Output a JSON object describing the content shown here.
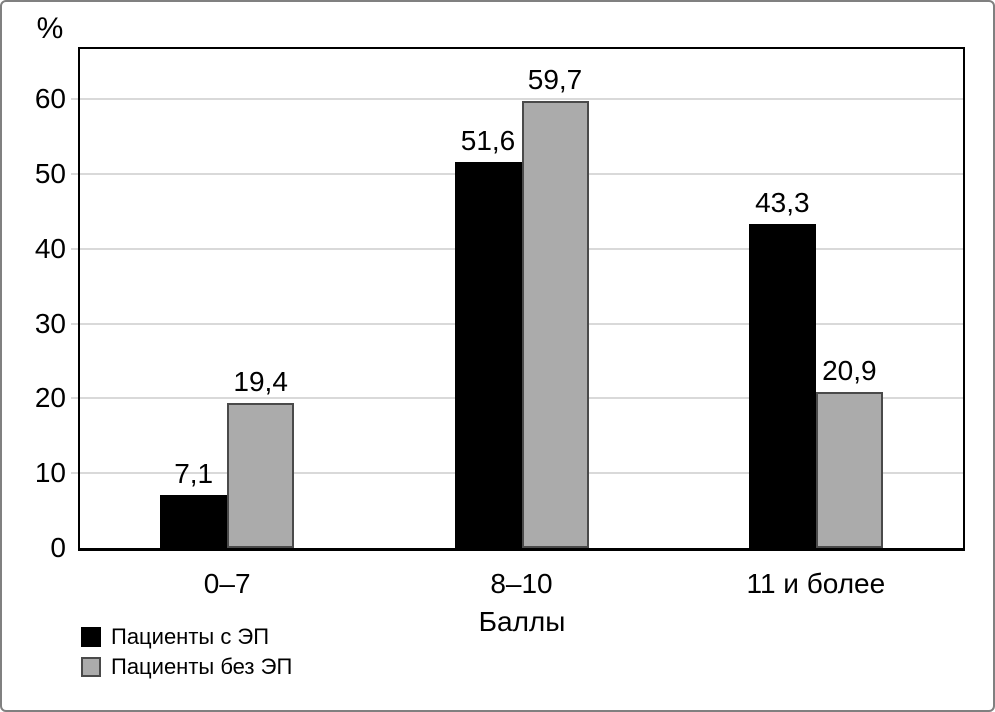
{
  "frame": {
    "background": "#ffffff",
    "border_color": "#808080"
  },
  "chart_data": {
    "type": "bar",
    "title": "",
    "categories": [
      "0–7",
      "8–10",
      "11 и более"
    ],
    "series": [
      {
        "name": "Пациенты с ЭП",
        "values": [
          7.1,
          51.6,
          43.3
        ],
        "labels": [
          "7,1",
          "51,6",
          "43,3"
        ],
        "color": "#000000",
        "border_color": "#000000"
      },
      {
        "name": "Пациенты без ЭП",
        "values": [
          19.4,
          59.7,
          20.9
        ],
        "labels": [
          "19,4",
          "59,7",
          "20,9"
        ],
        "color": "#ababab",
        "border_color": "#4a4a4a"
      }
    ],
    "ylabel": "%",
    "xlabel": "Баллы",
    "y_ticks": [
      0,
      10,
      20,
      30,
      40,
      50,
      60
    ],
    "ylim": [
      0,
      66.7
    ],
    "grid": true,
    "grid_color": "#d9d9d9",
    "axis_color": "#000000",
    "text_color": "#000000",
    "legend_position": "bottom-left"
  }
}
